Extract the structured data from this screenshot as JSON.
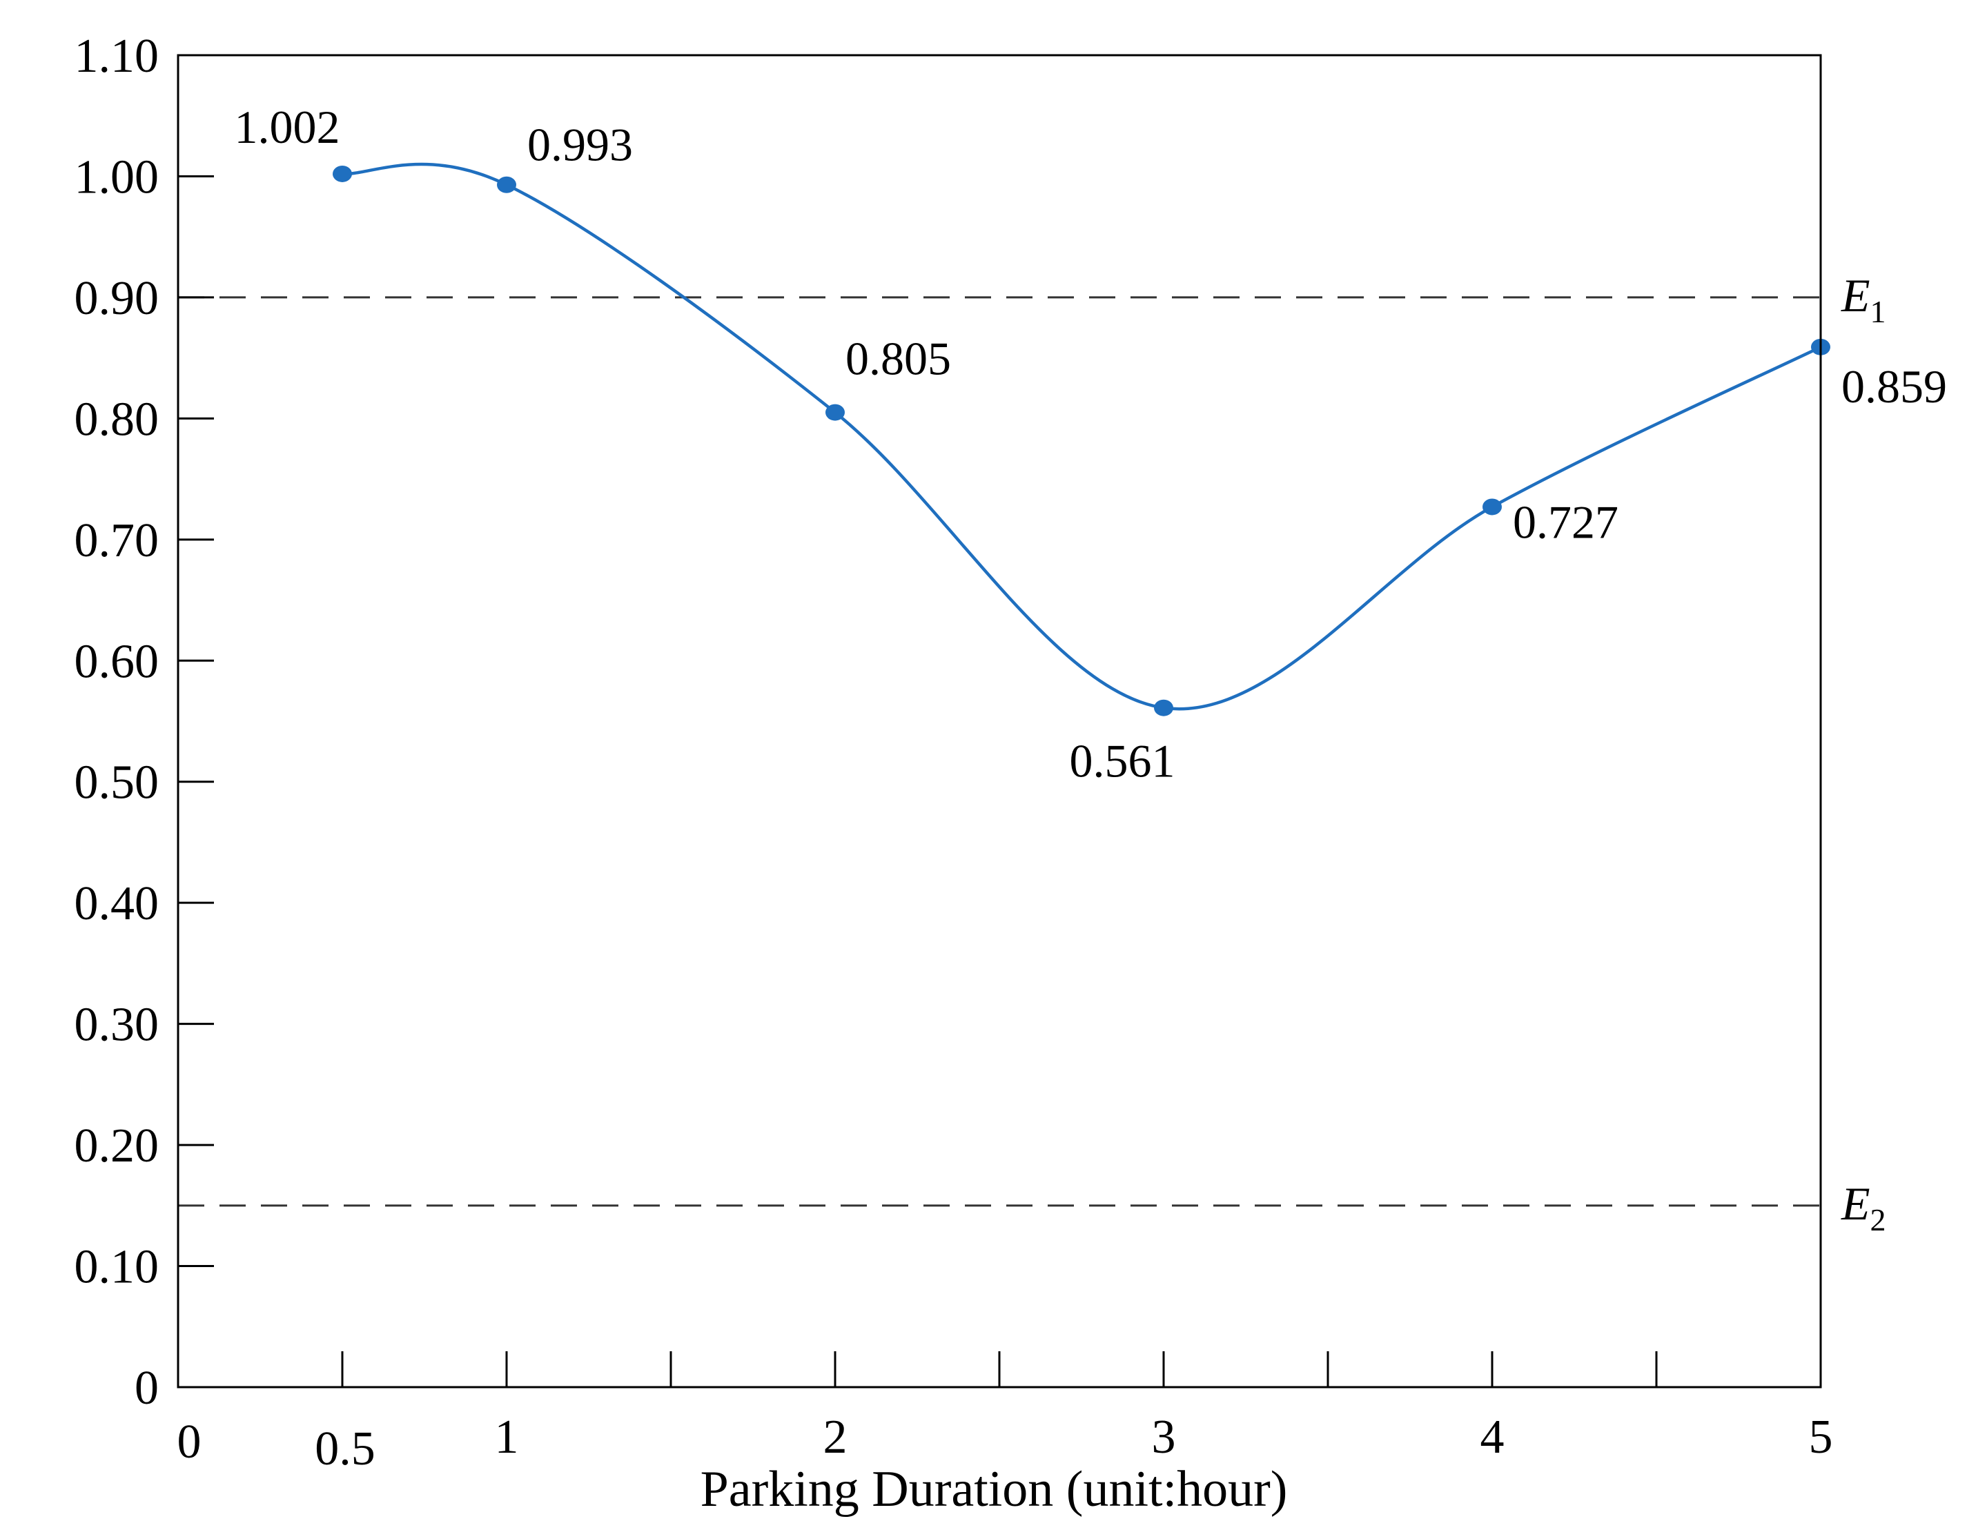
{
  "chart_data": {
    "type": "line",
    "title": "",
    "xlabel": "Parking Duration (unit:hour)",
    "ylabel": "",
    "xlim": [
      0,
      5
    ],
    "ylim": [
      0,
      1.1
    ],
    "x_ticks": [
      "0",
      "0.5",
      "1",
      "2",
      "3",
      "4",
      "5"
    ],
    "x_tick_values": [
      0,
      0.5,
      1,
      2,
      3,
      4,
      5
    ],
    "x_minor_ticks": [
      0.5,
      1,
      1.5,
      2,
      2.5,
      3,
      3.5,
      4,
      4.5
    ],
    "y_ticks": [
      "0",
      "0.10",
      "0.20",
      "0.30",
      "0.40",
      "0.50",
      "0.60",
      "0.70",
      "0.80",
      "0.90",
      "1.00",
      "1.10"
    ],
    "y_tick_values": [
      0,
      0.1,
      0.2,
      0.3,
      0.4,
      0.5,
      0.6,
      0.7,
      0.8,
      0.9,
      1.0,
      1.1
    ],
    "grid": false,
    "series": [
      {
        "x": [
          0.5,
          1,
          2,
          3,
          4,
          5
        ],
        "y": [
          1.002,
          0.993,
          0.805,
          0.561,
          0.727,
          0.859
        ],
        "labels": [
          "1.002",
          "0.993",
          "0.805",
          "0.561",
          "0.727",
          "0.859"
        ],
        "color": "#1f6fbf",
        "smooth": true,
        "markers": true
      }
    ],
    "reference_lines": [
      {
        "label": "E",
        "subscript": "1",
        "y": 0.9
      },
      {
        "label": "E",
        "subscript": "2",
        "y": 0.15
      }
    ]
  }
}
